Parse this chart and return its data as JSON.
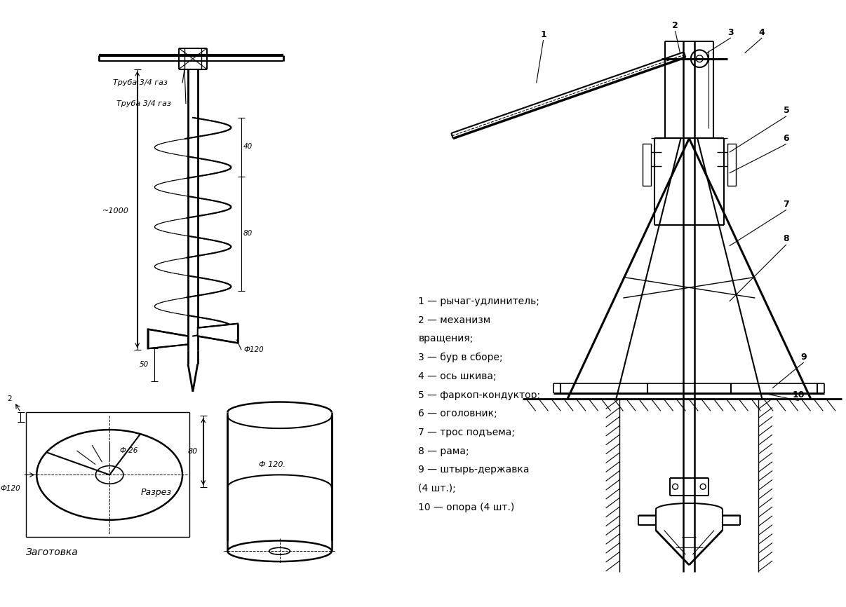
{
  "background_color": "#ffffff",
  "line_color": "#1a1a1a",
  "text_color": "#000000",
  "figsize": [
    12.06,
    8.66
  ],
  "dpi": 100,
  "legend_lines": [
    "1 — рычаг-удлинитель;",
    "2 — механизм",
    "вращения;",
    "3 — бур в сборе;",
    "4 — ось шкива;",
    "5 — фаркоп-кондуктор;",
    "6 — оголовник;",
    "7 — трос подъема;",
    "8 — рама;",
    "9 — штырь-державка",
    "(4 шт.);",
    "10 — опора (4 шт.)"
  ]
}
